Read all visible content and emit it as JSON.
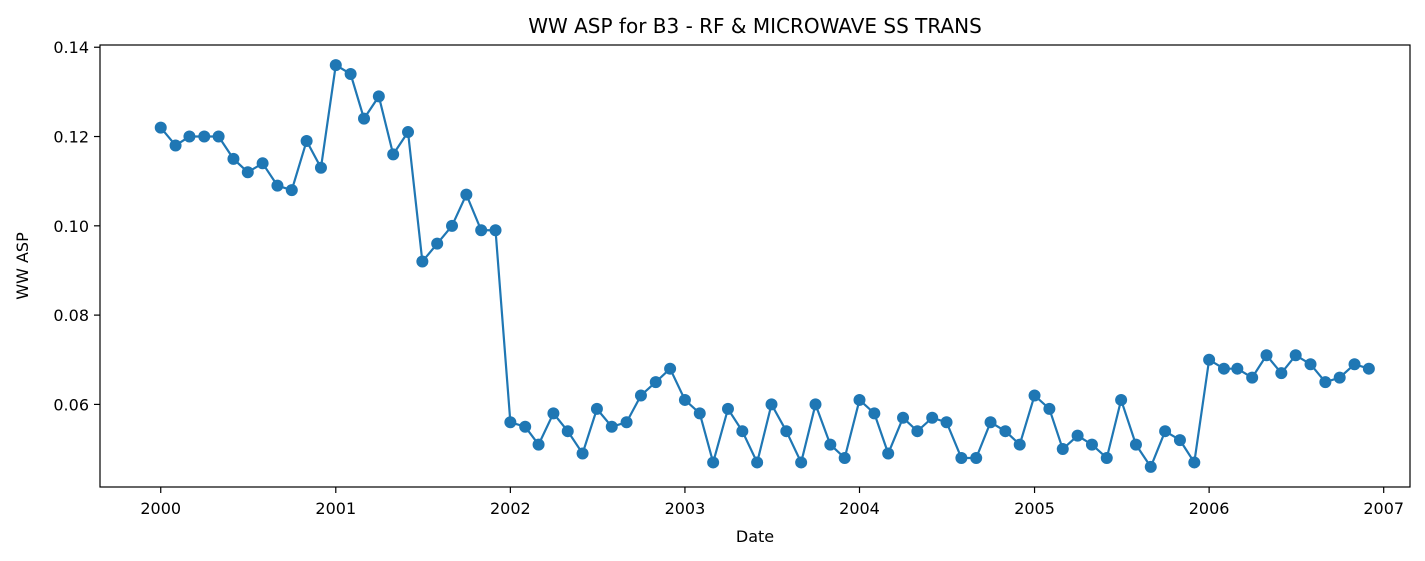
{
  "chart_data": {
    "type": "line",
    "title": "WW ASP for B3 - RF & MICROWAVE SS TRANS",
    "xlabel": "Date",
    "ylabel": "WW ASP",
    "xlim": [
      "1999-08-27",
      "2007-02-25"
    ],
    "ylim": [
      0.0415,
      0.1405
    ],
    "x_ticks": [
      "2000",
      "2001",
      "2002",
      "2003",
      "2004",
      "2005",
      "2006",
      "2007"
    ],
    "y_ticks": [
      "0.06",
      "0.08",
      "0.10",
      "0.12",
      "0.14"
    ],
    "grid": false,
    "legend": "none",
    "colors": {
      "series": "#1f77b4"
    },
    "series": [
      {
        "x": [
          "2000-01",
          "2000-02",
          "2000-03",
          "2000-04",
          "2000-05",
          "2000-06",
          "2000-07",
          "2000-08",
          "2000-09",
          "2000-10",
          "2000-11",
          "2000-12",
          "2001-01",
          "2001-02",
          "2001-03",
          "2001-04",
          "2001-05",
          "2001-06",
          "2001-07",
          "2001-08",
          "2001-09",
          "2001-10",
          "2001-11",
          "2001-12",
          "2002-01",
          "2002-02",
          "2002-03",
          "2002-04",
          "2002-05",
          "2002-06",
          "2002-07",
          "2002-08",
          "2002-09",
          "2002-10",
          "2002-11",
          "2002-12",
          "2003-01",
          "2003-02",
          "2003-03",
          "2003-04",
          "2003-05",
          "2003-06",
          "2003-07",
          "2003-08",
          "2003-09",
          "2003-10",
          "2003-11",
          "2003-12",
          "2004-01",
          "2004-02",
          "2004-03",
          "2004-04",
          "2004-05",
          "2004-06",
          "2004-07",
          "2004-08",
          "2004-09",
          "2004-10",
          "2004-11",
          "2004-12",
          "2005-01",
          "2005-02",
          "2005-03",
          "2005-04",
          "2005-05",
          "2005-06",
          "2005-07",
          "2005-08",
          "2005-09",
          "2005-10",
          "2005-11",
          "2005-12",
          "2006-01",
          "2006-02",
          "2006-03",
          "2006-04",
          "2006-05",
          "2006-06",
          "2006-07",
          "2006-08",
          "2006-09",
          "2006-10",
          "2006-11",
          "2006-12"
        ],
        "values": [
          0.122,
          0.118,
          0.12,
          0.12,
          0.12,
          0.115,
          0.112,
          0.114,
          0.109,
          0.108,
          0.119,
          0.113,
          0.136,
          0.134,
          0.124,
          0.129,
          0.116,
          0.121,
          0.092,
          0.096,
          0.1,
          0.107,
          0.099,
          0.099,
          0.056,
          0.055,
          0.051,
          0.058,
          0.054,
          0.049,
          0.059,
          0.055,
          0.056,
          0.062,
          0.065,
          0.068,
          0.061,
          0.058,
          0.047,
          0.059,
          0.054,
          0.047,
          0.06,
          0.054,
          0.047,
          0.06,
          0.051,
          0.048,
          0.061,
          0.058,
          0.049,
          0.057,
          0.054,
          0.057,
          0.056,
          0.048,
          0.048,
          0.056,
          0.054,
          0.051,
          0.062,
          0.059,
          0.05,
          0.053,
          0.051,
          0.048,
          0.061,
          0.051,
          0.046,
          0.054,
          0.052,
          0.047,
          0.07,
          0.068,
          0.068,
          0.066,
          0.071,
          0.067,
          0.071,
          0.069,
          0.065,
          0.066,
          0.069,
          0.068
        ]
      }
    ]
  }
}
